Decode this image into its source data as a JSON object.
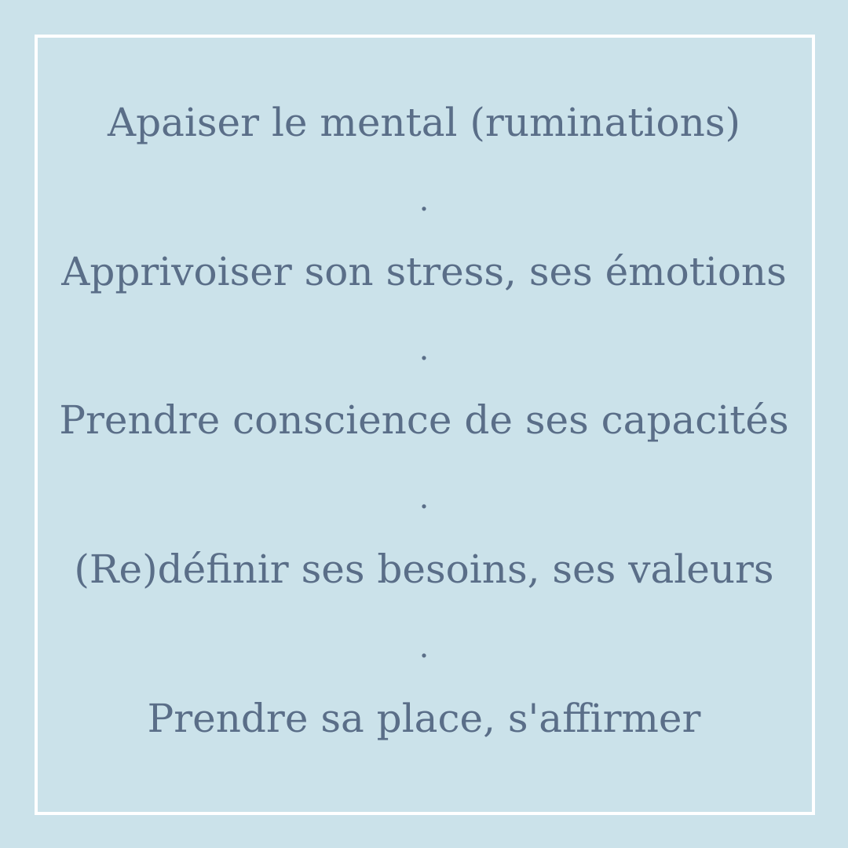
{
  "lines": [
    "Apaiser le mental (ruminations)",
    "Apprivoiser son stress, ses émotions",
    "Prendre conscience de ses capacités",
    "(Re)définir ses besoins, ses valeurs",
    "Prendre sa place, s'affirmer"
  ],
  "separator": ".",
  "colors": {
    "background": "#cbe2ea",
    "border": "#ffffff",
    "text": "#5a6e88"
  }
}
